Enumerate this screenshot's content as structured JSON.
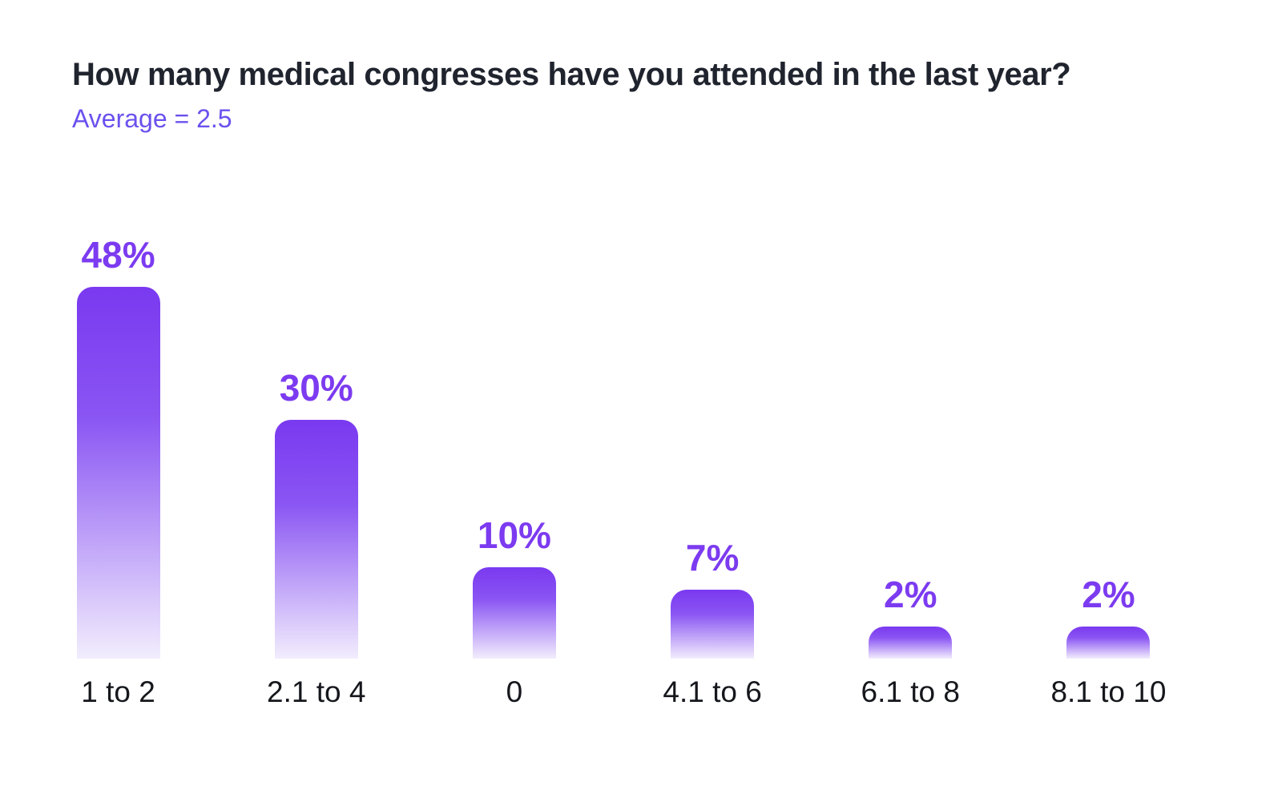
{
  "header": {
    "title": "How many medical congresses have you attended in the last year?",
    "average_label": "Average = 2.5"
  },
  "colors": {
    "title_text": "#20242e",
    "average_text": "#6b51ee",
    "value_label": "#7c3bf0",
    "bar_gradient_top": "#7a39f0",
    "bar_gradient_bottom": "#f2edfd",
    "category_text": "#15171c",
    "background": "#ffffff"
  },
  "chart_data": {
    "type": "bar",
    "title": "How many medical congresses have you attended in the last year?",
    "annotation": "Average = 2.5",
    "average": 2.5,
    "categories": [
      "1 to 2",
      "2.1 to 4",
      "0",
      "4.1 to 6",
      "6.1 to 8",
      "8.1 to 10"
    ],
    "values": [
      48,
      30,
      10,
      7,
      2,
      2
    ],
    "value_labels": [
      "48%",
      "30%",
      "10%",
      "7%",
      "2%",
      "2%"
    ],
    "xlabel": "",
    "ylabel": "",
    "ylim": [
      0,
      50
    ],
    "grid": false,
    "legend": false,
    "bar_style": "rounded-top, vertical purple-to-white gradient"
  }
}
